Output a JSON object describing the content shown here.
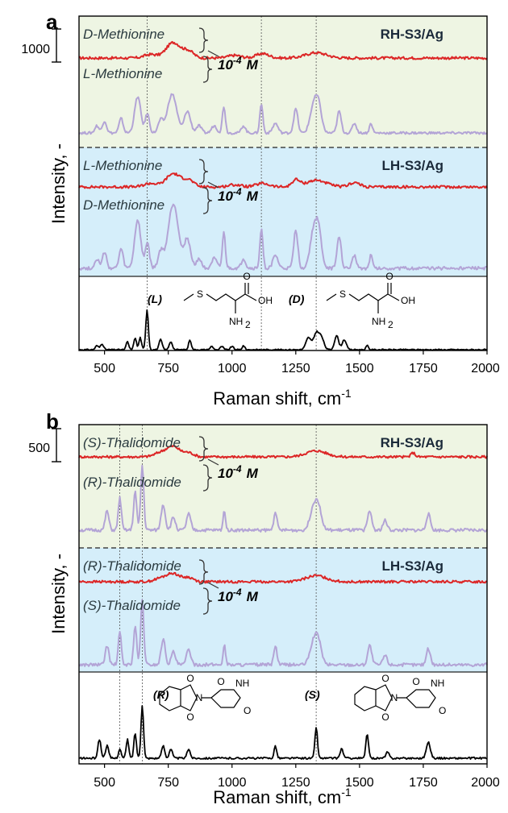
{
  "figure": {
    "colors": {
      "rh_background": "#eef5e3",
      "lh_background": "#d5eefa",
      "sample_trace": "#dc2626",
      "reference_trace": "#b3a4d6",
      "powder_trace": "#000000",
      "grid_line": "#555555"
    }
  },
  "chart_data": [
    {
      "panel": "a",
      "type": "line",
      "xlabel": "Raman shift, cm",
      "xlabel_superscript": "-1",
      "ylabel": "Intensity, -",
      "xlim": [
        400,
        2000
      ],
      "xticks": [
        500,
        750,
        1000,
        1250,
        1500,
        1750,
        2000
      ],
      "scale_bar": "1000",
      "reference_lines": [
        667,
        1115,
        1330
      ],
      "sections": [
        {
          "name": "RH-S3/Ag",
          "background": "green",
          "upper_label": "D-Methionine",
          "lower_label": "L-Methionine",
          "concentration": "10",
          "concentration_exp": "-4",
          "concentration_unit": "M",
          "series": [
            {
              "role": "sample",
              "peaks": [
                [
                  680,
                  0.08,
                  25
                ],
                [
                  770,
                  0.35,
                  28
                ],
                [
                  830,
                  0.15,
                  20
                ],
                [
                  1010,
                  0.06,
                  25
                ],
                [
                  1120,
                  0.1,
                  25
                ],
                [
                  1330,
                  0.12,
                  40
                ]
              ]
            },
            {
              "role": "reference",
              "peaks": [
                [
                  470,
                  0.15,
                  8
                ],
                [
                  500,
                  0.25,
                  8
                ],
                [
                  565,
                  0.3,
                  8
                ],
                [
                  630,
                  0.75,
                  12
                ],
                [
                  668,
                  0.4,
                  8
                ],
                [
                  720,
                  0.25,
                  10
                ],
                [
                  765,
                  0.8,
                  18
                ],
                [
                  825,
                  0.45,
                  12
                ],
                [
                  870,
                  0.15,
                  10
                ],
                [
                  930,
                  0.15,
                  10
                ],
                [
                  968,
                  0.55,
                  6
                ],
                [
                  1045,
                  0.15,
                  8
                ],
                [
                  1115,
                  0.6,
                  6
                ],
                [
                  1170,
                  0.2,
                  10
                ],
                [
                  1250,
                  0.5,
                  8
                ],
                [
                  1320,
                  0.55,
                  14
                ],
                [
                  1340,
                  0.5,
                  12
                ],
                [
                  1420,
                  0.45,
                  8
                ],
                [
                  1480,
                  0.2,
                  8
                ],
                [
                  1545,
                  0.2,
                  6
                ]
              ]
            }
          ]
        },
        {
          "name": "LH-S3/Ag",
          "background": "blue",
          "upper_label": "L-Methionine",
          "lower_label": "D-Methionine",
          "concentration": "10",
          "concentration_exp": "-4",
          "concentration_unit": "M",
          "series": [
            {
              "role": "sample",
              "peaks": [
                [
                  680,
                  0.08,
                  25
                ],
                [
                  770,
                  0.3,
                  28
                ],
                [
                  830,
                  0.15,
                  20
                ],
                [
                  1010,
                  0.05,
                  25
                ],
                [
                  1120,
                  0.08,
                  25
                ],
                [
                  1250,
                  0.15,
                  15
                ],
                [
                  1330,
                  0.15,
                  40
                ],
                [
                  1480,
                  0.1,
                  20
                ]
              ]
            },
            {
              "role": "reference",
              "peaks": [
                [
                  470,
                  0.15,
                  8
                ],
                [
                  500,
                  0.25,
                  8
                ],
                [
                  565,
                  0.3,
                  8
                ],
                [
                  630,
                  0.75,
                  12
                ],
                [
                  668,
                  0.4,
                  8
                ],
                [
                  720,
                  0.25,
                  10
                ],
                [
                  770,
                  1.0,
                  20
                ],
                [
                  825,
                  0.45,
                  12
                ],
                [
                  870,
                  0.15,
                  10
                ],
                [
                  930,
                  0.15,
                  10
                ],
                [
                  968,
                  0.55,
                  6
                ],
                [
                  1045,
                  0.15,
                  8
                ],
                [
                  1115,
                  0.6,
                  6
                ],
                [
                  1170,
                  0.2,
                  10
                ],
                [
                  1250,
                  0.6,
                  8
                ],
                [
                  1320,
                  0.55,
                  14
                ],
                [
                  1340,
                  0.5,
                  12
                ],
                [
                  1420,
                  0.5,
                  8
                ],
                [
                  1480,
                  0.2,
                  8
                ],
                [
                  1545,
                  0.2,
                  6
                ]
              ]
            }
          ]
        },
        {
          "name": "",
          "background": "white",
          "structure_labels": [
            "(L)",
            "(D)"
          ],
          "series": [
            {
              "role": "powder",
              "peaks": [
                [
                  470,
                  0.1,
                  6
                ],
                [
                  490,
                  0.15,
                  6
                ],
                [
                  590,
                  0.2,
                  5
                ],
                [
                  620,
                  0.3,
                  5
                ],
                [
                  640,
                  0.3,
                  5
                ],
                [
                  667,
                  1.0,
                  5
                ],
                [
                  720,
                  0.25,
                  6
                ],
                [
                  760,
                  0.2,
                  6
                ],
                [
                  835,
                  0.25,
                  5
                ],
                [
                  920,
                  0.08,
                  6
                ],
                [
                  960,
                  0.08,
                  6
                ],
                [
                  1000,
                  0.08,
                  6
                ],
                [
                  1045,
                  0.1,
                  5
                ],
                [
                  1300,
                  0.3,
                  10
                ],
                [
                  1330,
                  0.4,
                  10
                ],
                [
                  1350,
                  0.3,
                  10
                ],
                [
                  1410,
                  0.35,
                  8
                ],
                [
                  1440,
                  0.25,
                  8
                ],
                [
                  1530,
                  0.1,
                  5
                ]
              ]
            }
          ]
        }
      ]
    },
    {
      "panel": "b",
      "type": "line",
      "xlabel": "Raman shift, cm",
      "xlabel_superscript": "-1",
      "ylabel": "Intensity, -",
      "xlim": [
        400,
        2000
      ],
      "xticks": [
        500,
        750,
        1000,
        1250,
        1500,
        1750,
        2000
      ],
      "scale_bar": "500",
      "reference_lines": [
        560,
        648,
        1330
      ],
      "sections": [
        {
          "name": "RH-S3/Ag",
          "background": "green",
          "upper_label": "(S)-Thalidomide",
          "lower_label": "(R)-Thalidomide",
          "concentration": "10",
          "concentration_exp": "-4",
          "concentration_unit": "M",
          "series": [
            {
              "role": "sample",
              "peaks": [
                [
                  720,
                  0.1,
                  25
                ],
                [
                  770,
                  0.25,
                  25
                ],
                [
                  830,
                  0.1,
                  20
                ],
                [
                  1330,
                  0.15,
                  40
                ],
                [
                  1710,
                  0.1,
                  8
                ]
              ]
            },
            {
              "role": "reference",
              "peaks": [
                [
                  510,
                  0.3,
                  7
                ],
                [
                  560,
                  0.5,
                  6
                ],
                [
                  620,
                  0.6,
                  6
                ],
                [
                  648,
                  1.0,
                  6
                ],
                [
                  730,
                  0.4,
                  8
                ],
                [
                  770,
                  0.2,
                  8
                ],
                [
                  830,
                  0.25,
                  8
                ],
                [
                  970,
                  0.3,
                  5
                ],
                [
                  1170,
                  0.3,
                  6
                ],
                [
                  1320,
                  0.35,
                  14
                ],
                [
                  1340,
                  0.3,
                  12
                ],
                [
                  1540,
                  0.3,
                  8
                ],
                [
                  1600,
                  0.15,
                  8
                ],
                [
                  1770,
                  0.25,
                  8
                ]
              ]
            }
          ]
        },
        {
          "name": "LH-S3/Ag",
          "background": "blue",
          "upper_label": "(R)-Thalidomide",
          "lower_label": "(S)-Thalidomide",
          "concentration": "10",
          "concentration_exp": "-4",
          "concentration_unit": "M",
          "series": [
            {
              "role": "sample",
              "peaks": [
                [
                  720,
                  0.08,
                  25
                ],
                [
                  770,
                  0.2,
                  25
                ],
                [
                  830,
                  0.1,
                  20
                ],
                [
                  1330,
                  0.15,
                  40
                ]
              ]
            },
            {
              "role": "reference",
              "peaks": [
                [
                  510,
                  0.3,
                  7
                ],
                [
                  560,
                  0.5,
                  6
                ],
                [
                  620,
                  0.6,
                  6
                ],
                [
                  648,
                  1.0,
                  6
                ],
                [
                  730,
                  0.4,
                  8
                ],
                [
                  770,
                  0.2,
                  8
                ],
                [
                  830,
                  0.25,
                  8
                ],
                [
                  970,
                  0.3,
                  5
                ],
                [
                  1170,
                  0.3,
                  6
                ],
                [
                  1320,
                  0.35,
                  14
                ],
                [
                  1340,
                  0.3,
                  12
                ],
                [
                  1540,
                  0.3,
                  8
                ],
                [
                  1600,
                  0.15,
                  8
                ],
                [
                  1770,
                  0.25,
                  8
                ]
              ]
            }
          ]
        },
        {
          "name": "",
          "background": "white",
          "structure_labels": [
            "(R)",
            "(S)"
          ],
          "series": [
            {
              "role": "powder",
              "peaks": [
                [
                  480,
                  0.3,
                  6
                ],
                [
                  510,
                  0.2,
                  6
                ],
                [
                  560,
                  0.15,
                  5
                ],
                [
                  590,
                  0.3,
                  5
                ],
                [
                  620,
                  0.4,
                  5
                ],
                [
                  648,
                  0.85,
                  5
                ],
                [
                  730,
                  0.2,
                  6
                ],
                [
                  760,
                  0.15,
                  6
                ],
                [
                  830,
                  0.15,
                  6
                ],
                [
                  1170,
                  0.2,
                  5
                ],
                [
                  1330,
                  0.5,
                  5
                ],
                [
                  1430,
                  0.15,
                  6
                ],
                [
                  1530,
                  0.4,
                  5
                ],
                [
                  1610,
                  0.1,
                  6
                ],
                [
                  1770,
                  0.25,
                  8
                ]
              ]
            }
          ]
        }
      ]
    }
  ]
}
